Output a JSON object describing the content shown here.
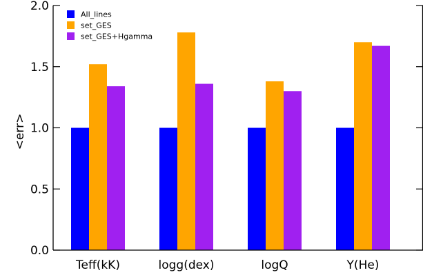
{
  "chart_data": {
    "type": "bar",
    "categories": [
      "Teff(kK)",
      "logg(dex)",
      "logQ",
      "Y(He)"
    ],
    "series": [
      {
        "name": "All_lines",
        "color": "#0000ff",
        "values": [
          1.0,
          1.0,
          1.0,
          1.0
        ]
      },
      {
        "name": "set_GES",
        "color": "#ffa500",
        "values": [
          1.52,
          1.78,
          1.38,
          1.7
        ]
      },
      {
        "name": "set_GES+Hgamma",
        "color": "#a020f0",
        "values": [
          1.34,
          1.36,
          1.3,
          1.67
        ]
      }
    ],
    "ylabel": "<err>",
    "xlabel": "",
    "ylim": [
      0.0,
      2.0
    ],
    "yticks": [
      "0.0",
      "0.5",
      "1.0",
      "1.5",
      "2.0"
    ],
    "grid": false,
    "legend_position": "top-left"
  }
}
